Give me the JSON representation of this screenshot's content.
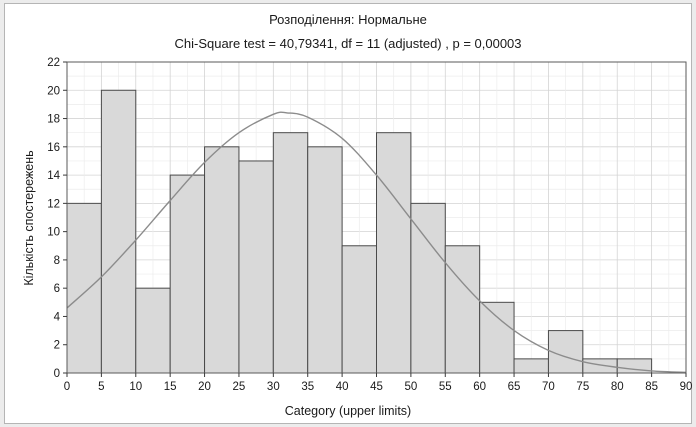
{
  "chart_data": {
    "type": "bar",
    "title": "Розподілення: Нормальне",
    "subtitle": "Chi-Square test = 40,79341, df = 11 (adjusted) , p = 0,00003",
    "xlabel": "Category (upper limits)",
    "ylabel": "Кількість спостережень",
    "xlim": [
      0,
      90
    ],
    "ylim": [
      0,
      22
    ],
    "xticks": [
      0,
      5,
      10,
      15,
      20,
      25,
      30,
      35,
      40,
      45,
      50,
      55,
      60,
      65,
      70,
      75,
      80,
      85,
      90
    ],
    "yticks": [
      0,
      2,
      4,
      6,
      8,
      10,
      12,
      14,
      16,
      18,
      20,
      22
    ],
    "grid": true,
    "bin_width": 5,
    "bins_upper_limits": [
      5,
      10,
      15,
      20,
      25,
      30,
      35,
      40,
      45,
      50,
      55,
      60,
      65,
      70,
      75,
      80,
      85
    ],
    "values": [
      12,
      20,
      6,
      14,
      16,
      15,
      17,
      16,
      9,
      17,
      12,
      9,
      5,
      1,
      3,
      1,
      1
    ],
    "fitted_curve": {
      "distribution": "normal",
      "points": [
        [
          0,
          4.6
        ],
        [
          5,
          6.8
        ],
        [
          10,
          9.4
        ],
        [
          15,
          12.2
        ],
        [
          20,
          14.9
        ],
        [
          25,
          17.0
        ],
        [
          30,
          18.3
        ],
        [
          32,
          18.4
        ],
        [
          35,
          18.1
        ],
        [
          40,
          16.6
        ],
        [
          45,
          14.0
        ],
        [
          50,
          10.9
        ],
        [
          55,
          7.8
        ],
        [
          60,
          5.1
        ],
        [
          65,
          3.0
        ],
        [
          70,
          1.6
        ],
        [
          75,
          0.8
        ],
        [
          80,
          0.4
        ],
        [
          85,
          0.15
        ],
        [
          90,
          0.05
        ]
      ]
    },
    "colors": {
      "bar_fill": "#d9d9d9",
      "bar_stroke": "#4a4a4a",
      "curve": "#8c8c8c",
      "grid": "#d4d4d4"
    }
  }
}
